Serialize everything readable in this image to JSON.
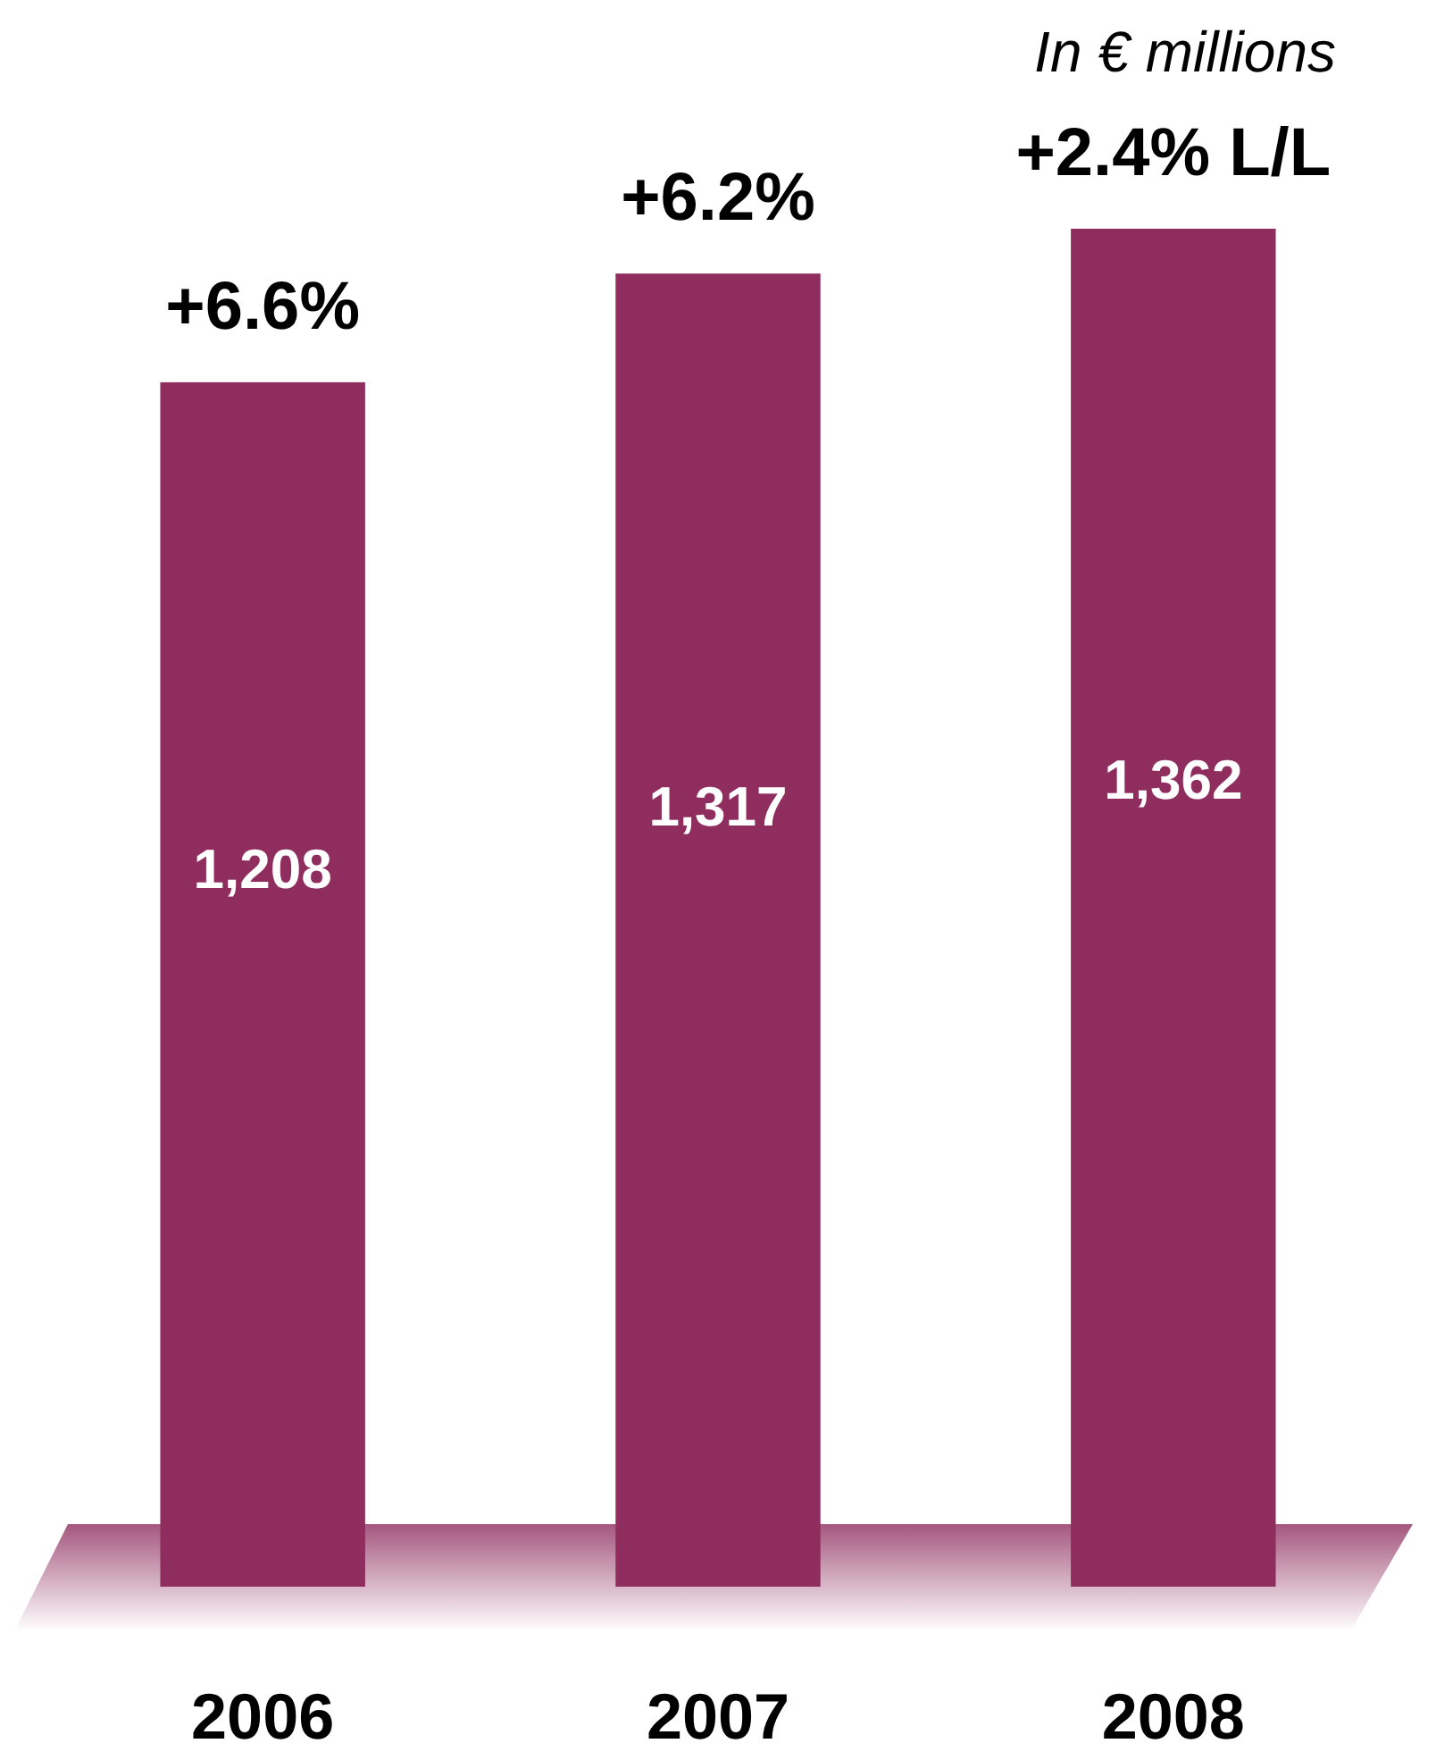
{
  "chart_data": {
    "type": "bar",
    "subtitle": "In € millions",
    "categories": [
      "2006",
      "2007",
      "2008"
    ],
    "values": [
      1208,
      1317,
      1362
    ],
    "value_labels": [
      "1,208",
      "1,317",
      "1,362"
    ],
    "color": "#8e2d5e",
    "tick_labels": "x",
    "annotations": [
      "+6.6%",
      "+6.2%",
      "+2.4% L/L"
    ]
  }
}
